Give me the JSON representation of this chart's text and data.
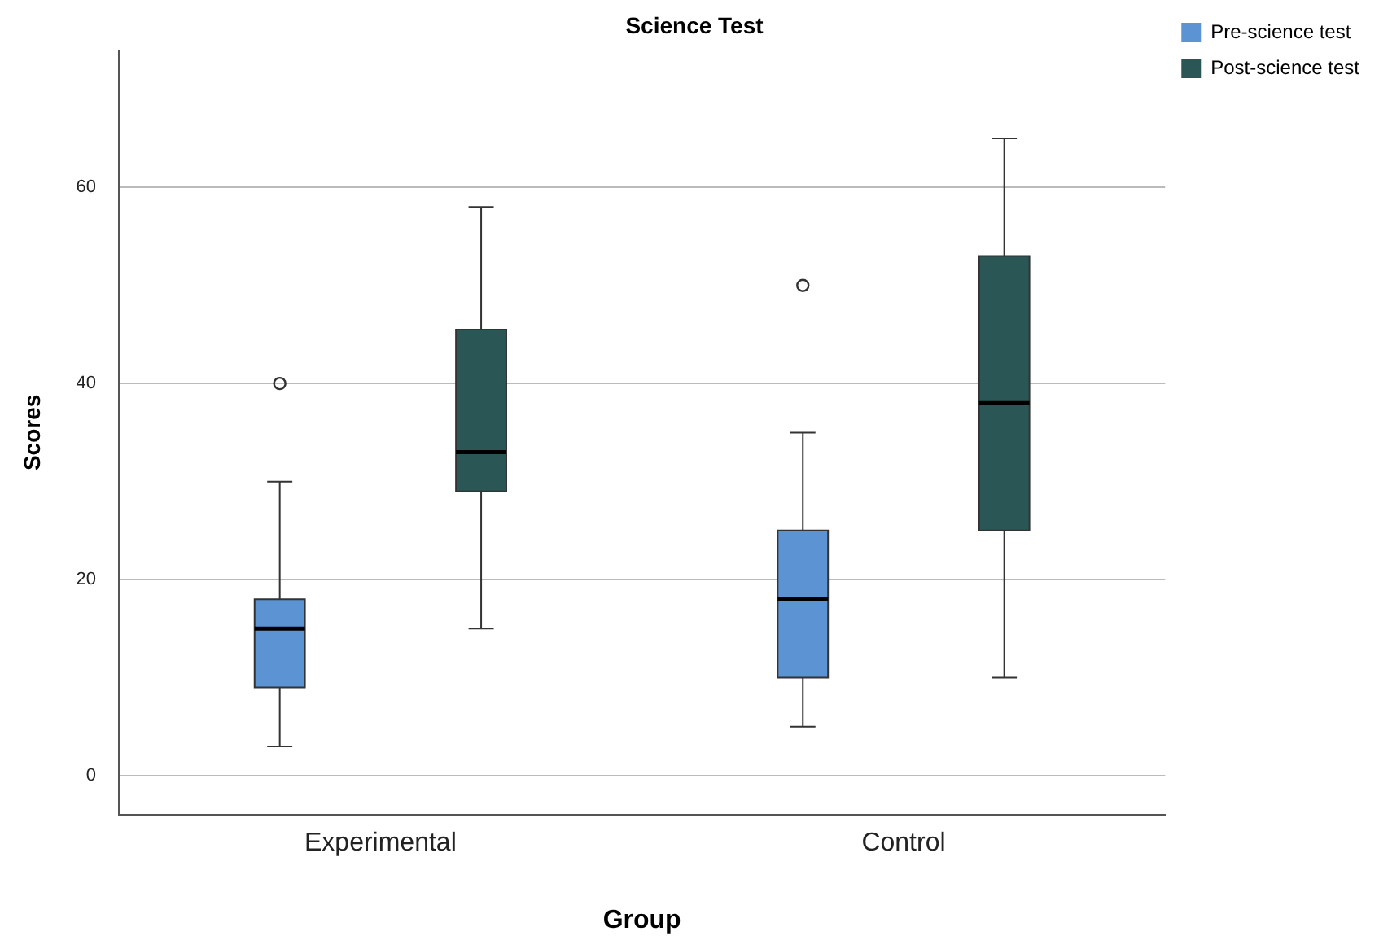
{
  "chart_data": {
    "type": "box",
    "title": "Science Test",
    "xlabel": "Group",
    "ylabel": "Scores",
    "categories": [
      "Experimental",
      "Control"
    ],
    "series": [
      {
        "name": "Pre-science test",
        "color": "#5b93d3",
        "boxes": [
          {
            "low": 3,
            "q1": 9,
            "median": 15,
            "q3": 18,
            "high": 30,
            "outliers": [
              40
            ]
          },
          {
            "low": 5,
            "q1": 10,
            "median": 18,
            "q3": 25,
            "high": 35,
            "outliers": [
              50
            ]
          }
        ]
      },
      {
        "name": "Post-science test",
        "color": "#2a5755",
        "boxes": [
          {
            "low": 15,
            "q1": 29,
            "median": 33,
            "q3": 45.5,
            "high": 58
          },
          {
            "low": 10,
            "q1": 25,
            "median": 38,
            "q3": 53,
            "high": 65
          }
        ]
      }
    ],
    "ylim": [
      -4,
      74
    ],
    "yticks": [
      0,
      20,
      40,
      60
    ],
    "grid": "y",
    "legend": "top right"
  }
}
